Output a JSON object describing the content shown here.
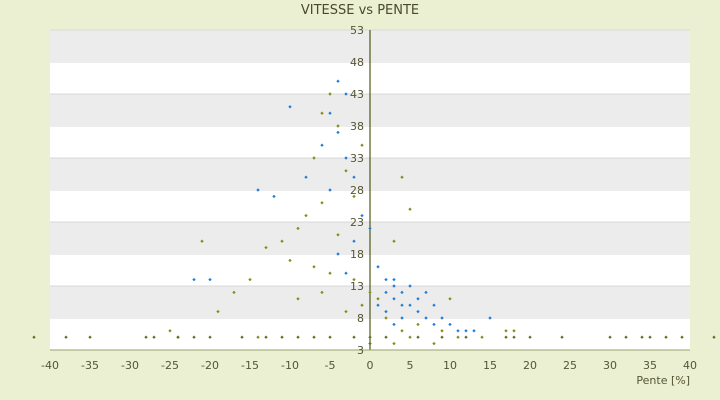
{
  "chart_data": {
    "type": "scatter",
    "title": "VITESSE vs PENTE",
    "xlabel": "Pente [%]",
    "ylabel": "",
    "xlim": [
      -40,
      40
    ],
    "ylim": [
      3,
      53
    ],
    "x_ticks": [
      "-40",
      "-35",
      "-30",
      "-25",
      "-20",
      "-15",
      "-10",
      "-5",
      "0",
      "5",
      "10",
      "15",
      "20",
      "25",
      "30",
      "35",
      "40"
    ],
    "x_tick_values": [
      -40,
      -35,
      -30,
      -25,
      -20,
      -15,
      -10,
      -5,
      0,
      5,
      10,
      15,
      20,
      25,
      30,
      35,
      40
    ],
    "y_ticks": [
      "3",
      "8",
      "13",
      "18",
      "23",
      "28",
      "33",
      "38",
      "43",
      "48",
      "53"
    ],
    "y_tick_values": [
      3,
      8,
      13,
      18,
      23,
      28,
      33,
      38,
      43,
      48,
      53
    ],
    "grid": true,
    "legend": "none",
    "series": [
      {
        "color": "#1f7ed6",
        "values": [
          {
            "x": -4,
            "y": 45
          },
          {
            "x": -3,
            "y": 43
          },
          {
            "x": -5,
            "y": 40
          },
          {
            "x": -4,
            "y": 37
          },
          {
            "x": -6,
            "y": 35
          },
          {
            "x": -3,
            "y": 33
          },
          {
            "x": -2,
            "y": 30
          },
          {
            "x": -5,
            "y": 28
          },
          {
            "x": -10,
            "y": 41
          },
          {
            "x": -12,
            "y": 27
          },
          {
            "x": -14,
            "y": 28
          },
          {
            "x": -8,
            "y": 30
          },
          {
            "x": -1,
            "y": 24
          },
          {
            "x": -2,
            "y": 20
          },
          {
            "x": 0,
            "y": 22
          },
          {
            "x": 1,
            "y": 16
          },
          {
            "x": 2,
            "y": 14
          },
          {
            "x": 3,
            "y": 13
          },
          {
            "x": 4,
            "y": 12
          },
          {
            "x": 5,
            "y": 13
          },
          {
            "x": 2,
            "y": 12
          },
          {
            "x": 3,
            "y": 11
          },
          {
            "x": 4,
            "y": 10
          },
          {
            "x": 3,
            "y": 14
          },
          {
            "x": 5,
            "y": 10
          },
          {
            "x": 6,
            "y": 9
          },
          {
            "x": 7,
            "y": 8
          },
          {
            "x": 8,
            "y": 7
          },
          {
            "x": 9,
            "y": 8
          },
          {
            "x": 10,
            "y": 7
          },
          {
            "x": 11,
            "y": 6
          },
          {
            "x": 12,
            "y": 6
          },
          {
            "x": 15,
            "y": 8
          },
          {
            "x": -20,
            "y": 14
          },
          {
            "x": -22,
            "y": 14
          },
          {
            "x": -4,
            "y": 18
          },
          {
            "x": -3,
            "y": 15
          },
          {
            "x": 1,
            "y": 10
          },
          {
            "x": 2,
            "y": 9
          },
          {
            "x": 6,
            "y": 11
          },
          {
            "x": 4,
            "y": 8
          },
          {
            "x": 3,
            "y": 7
          },
          {
            "x": 7,
            "y": 12
          },
          {
            "x": 8,
            "y": 10
          },
          {
            "x": 13,
            "y": 6
          }
        ]
      },
      {
        "color": "#8a8a1a",
        "values": [
          {
            "x": -5,
            "y": 43
          },
          {
            "x": -6,
            "y": 40
          },
          {
            "x": -4,
            "y": 38
          },
          {
            "x": -7,
            "y": 33
          },
          {
            "x": -3,
            "y": 31
          },
          {
            "x": -6,
            "y": 26
          },
          {
            "x": -8,
            "y": 24
          },
          {
            "x": -9,
            "y": 22
          },
          {
            "x": -11,
            "y": 20
          },
          {
            "x": -13,
            "y": 19
          },
          {
            "x": -10,
            "y": 17
          },
          {
            "x": -7,
            "y": 16
          },
          {
            "x": -5,
            "y": 15
          },
          {
            "x": -2,
            "y": 14
          },
          {
            "x": 0,
            "y": 12
          },
          {
            "x": -1,
            "y": 10
          },
          {
            "x": 1,
            "y": 11
          },
          {
            "x": 2,
            "y": 8
          },
          {
            "x": 4,
            "y": 6
          },
          {
            "x": 6,
            "y": 7
          },
          {
            "x": 9,
            "y": 6
          },
          {
            "x": 11,
            "y": 5
          },
          {
            "x": 14,
            "y": 5
          },
          {
            "x": -15,
            "y": 14
          },
          {
            "x": -17,
            "y": 12
          },
          {
            "x": -21,
            "y": 20
          },
          {
            "x": -19,
            "y": 9
          },
          {
            "x": -25,
            "y": 6
          },
          {
            "x": -24,
            "y": 5
          },
          {
            "x": -14,
            "y": 5
          },
          {
            "x": -9,
            "y": 11
          },
          {
            "x": -6,
            "y": 12
          },
          {
            "x": -3,
            "y": 9
          },
          {
            "x": 3,
            "y": 4
          },
          {
            "x": 5,
            "y": 5
          },
          {
            "x": 8,
            "y": 4
          },
          {
            "x": -4,
            "y": 21
          },
          {
            "x": -2,
            "y": 27
          },
          {
            "x": -1,
            "y": 35
          },
          {
            "x": 3,
            "y": 20
          },
          {
            "x": 5,
            "y": 25
          },
          {
            "x": 4,
            "y": 30
          },
          {
            "x": 17,
            "y": 6
          },
          {
            "x": 18,
            "y": 6
          },
          {
            "x": 10,
            "y": 11
          }
        ]
      },
      {
        "color": "#6b6b22",
        "values": [
          {
            "x": -42,
            "y": 5
          },
          {
            "x": -38,
            "y": 5
          },
          {
            "x": -35,
            "y": 5
          },
          {
            "x": -28,
            "y": 5
          },
          {
            "x": -27,
            "y": 5
          },
          {
            "x": -24,
            "y": 5
          },
          {
            "x": -22,
            "y": 5
          },
          {
            "x": -20,
            "y": 5
          },
          {
            "x": -16,
            "y": 5
          },
          {
            "x": -13,
            "y": 5
          },
          {
            "x": -11,
            "y": 5
          },
          {
            "x": -9,
            "y": 5
          },
          {
            "x": -7,
            "y": 5
          },
          {
            "x": -5,
            "y": 5
          },
          {
            "x": -2,
            "y": 5
          },
          {
            "x": 0,
            "y": 5
          },
          {
            "x": 0,
            "y": 4
          },
          {
            "x": 2,
            "y": 5
          },
          {
            "x": 6,
            "y": 5
          },
          {
            "x": 9,
            "y": 5
          },
          {
            "x": 12,
            "y": 5
          },
          {
            "x": 17,
            "y": 5
          },
          {
            "x": 18,
            "y": 5
          },
          {
            "x": 20,
            "y": 5
          },
          {
            "x": 24,
            "y": 5
          },
          {
            "x": 30,
            "y": 5
          },
          {
            "x": 32,
            "y": 5
          },
          {
            "x": 34,
            "y": 5
          },
          {
            "x": 35,
            "y": 5
          },
          {
            "x": 37,
            "y": 5
          },
          {
            "x": 39,
            "y": 5
          },
          {
            "x": 43,
            "y": 5
          }
        ]
      }
    ]
  }
}
